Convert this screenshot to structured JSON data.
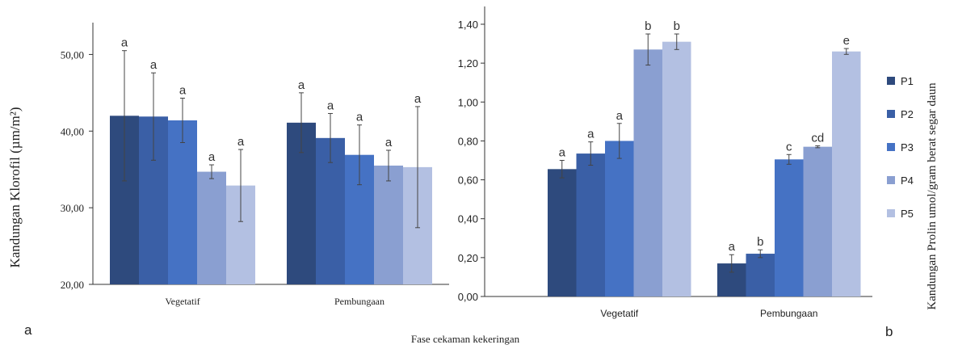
{
  "panel_labels": {
    "left": "a",
    "right": "b"
  },
  "shared_xlabel": "Fase cekaman kekeringan",
  "series_colors": [
    "#2E4A7D",
    "#3A5FA6",
    "#4572C4",
    "#8A9FD1",
    "#B3C0E2"
  ],
  "chart_data": [
    {
      "type": "bar",
      "title": "",
      "ylabel": "Kandungan Klorofil (µm/m²)",
      "ylim": [
        20,
        55
      ],
      "yticks": [
        "20,00",
        "30,00",
        "40,00",
        "50,00"
      ],
      "categories": [
        "Vegetatif",
        "Pembungaan"
      ],
      "grid": false,
      "legend": "none",
      "series": [
        {
          "values": [
            42.0,
            41.1
          ],
          "errors": [
            8.5,
            3.9
          ],
          "letters": [
            "a",
            "a"
          ]
        },
        {
          "values": [
            41.9,
            39.1
          ],
          "errors": [
            5.7,
            3.2
          ],
          "letters": [
            "a",
            "a"
          ]
        },
        {
          "values": [
            41.4,
            36.9
          ],
          "errors": [
            2.9,
            3.9
          ],
          "letters": [
            "a",
            "a"
          ]
        },
        {
          "values": [
            34.7,
            35.5
          ],
          "errors": [
            0.9,
            2.0
          ],
          "letters": [
            "a",
            "a"
          ]
        },
        {
          "values": [
            32.9,
            35.3
          ],
          "errors": [
            4.7,
            7.9
          ],
          "letters": [
            "a",
            "a"
          ]
        }
      ]
    },
    {
      "type": "bar",
      "title": "",
      "ylabel": "Kandungan Prolin umol/gram berat segar daun",
      "ylim": [
        0,
        1.4
      ],
      "yticks": [
        "0,00",
        "0,20",
        "0,40",
        "0,60",
        "0,80",
        "1,00",
        "1,20",
        "1,40"
      ],
      "categories": [
        "Vegetatif",
        "Pembungaan"
      ],
      "grid": false,
      "legend": "right",
      "series": [
        {
          "name": "P1",
          "values": [
            0.655,
            0.17
          ],
          "errors": [
            0.045,
            0.045
          ],
          "letters": [
            "a",
            "a"
          ]
        },
        {
          "name": "P2",
          "values": [
            0.735,
            0.22
          ],
          "errors": [
            0.06,
            0.02
          ],
          "letters": [
            "a",
            "b"
          ]
        },
        {
          "name": "P3",
          "values": [
            0.8,
            0.705
          ],
          "errors": [
            0.09,
            0.025
          ],
          "letters": [
            "a",
            "c"
          ]
        },
        {
          "name": "P4",
          "values": [
            1.27,
            0.77
          ],
          "errors": [
            0.08,
            0.005
          ],
          "letters": [
            "b",
            "cd"
          ]
        },
        {
          "name": "P5",
          "values": [
            1.31,
            1.26
          ],
          "errors": [
            0.04,
            0.015
          ],
          "letters": [
            "b",
            "e"
          ]
        }
      ]
    }
  ]
}
